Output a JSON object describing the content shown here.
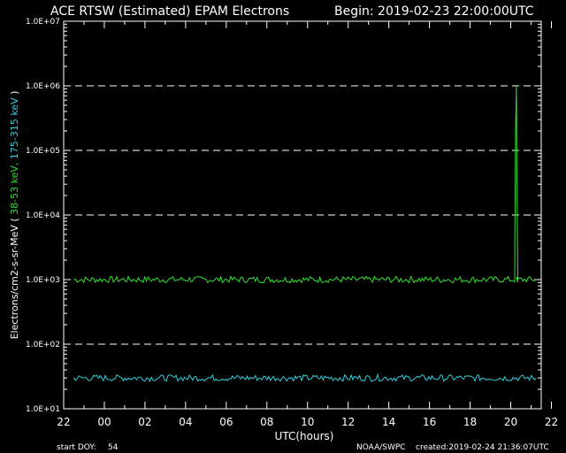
{
  "header": {
    "title": "ACE RTSW (Estimated) EPAM Electrons",
    "begin": "Begin: 2019-02-23 22:00:00UTC"
  },
  "footer": {
    "start_doy_label": "start DOY:",
    "start_doy_value": "54",
    "agency": "NOAA/SWPC",
    "created": "created:2019-02-24 21:36:07UTC"
  },
  "chart_data": {
    "type": "line",
    "title": "ACE RTSW (Estimated) EPAM Electrons",
    "xlabel": "UTC(hours)",
    "ylabel_prefix": "Electrons/cm2-s-sr-MeV  (",
    "ylabel_green": " 38-53 keV, ",
    "ylabel_cyan": " 175-315 keV",
    "ylabel_suffix": " )",
    "y_scale": "log",
    "ylim": [
      10,
      10000000
    ],
    "xlim": [
      0,
      23.5
    ],
    "x_ticks": [
      "22",
      "00",
      "02",
      "04",
      "06",
      "08",
      "10",
      "12",
      "14",
      "16",
      "18",
      "20",
      "22"
    ],
    "y_ticks": [
      "1.0E+01",
      "1.0E+02",
      "1.0E+03",
      "1.0E+04",
      "1.0E+05",
      "1.0E+06",
      "1.0E+07"
    ],
    "dashed_gridlines_at": [
      100,
      10000,
      100000,
      1000000
    ],
    "series": [
      {
        "color": "#33dd33",
        "base": 1000,
        "jitter": 0.05,
        "spike_hours": [
          22.2,
          22.35
        ],
        "spike_peak": 1000000,
        "spike_values": [
          3000,
          200000,
          1000000,
          20000,
          900
        ]
      },
      {
        "color": "#33ccdd",
        "base": 30,
        "jitter": 0.05
      }
    ]
  }
}
